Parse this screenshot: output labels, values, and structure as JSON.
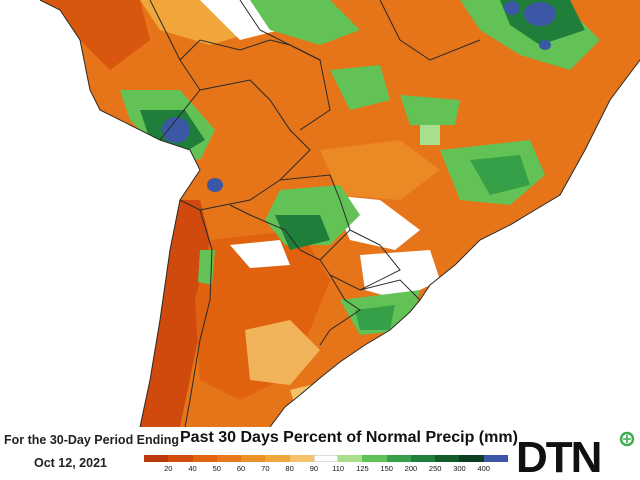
{
  "footer": {
    "period_label": "For the 30-Day Period Ending",
    "period_date": "Oct 12, 2021",
    "legend_title": "Past 30 Days Percent of Normal Precip (mm)"
  },
  "legend": {
    "ticks": [
      "20",
      "40",
      "50",
      "60",
      "70",
      "80",
      "90",
      "110",
      "125",
      "150",
      "200",
      "250",
      "300",
      "400"
    ],
    "colors": [
      "#b93a0a",
      "#d24d0c",
      "#e06410",
      "#e8791a",
      "#ec9028",
      "#efa83c",
      "#f3c26a",
      "#ffffff",
      "#a8df8e",
      "#63c256",
      "#36a048",
      "#1f7e3a",
      "#125c2c",
      "#0b3e22",
      "#3b57a6"
    ]
  },
  "brand": {
    "logo_text": "DTN",
    "accent_color": "#3cae4e"
  },
  "map": {
    "ocean_color": "#ffffff",
    "border_color": "#2a2a2a"
  }
}
